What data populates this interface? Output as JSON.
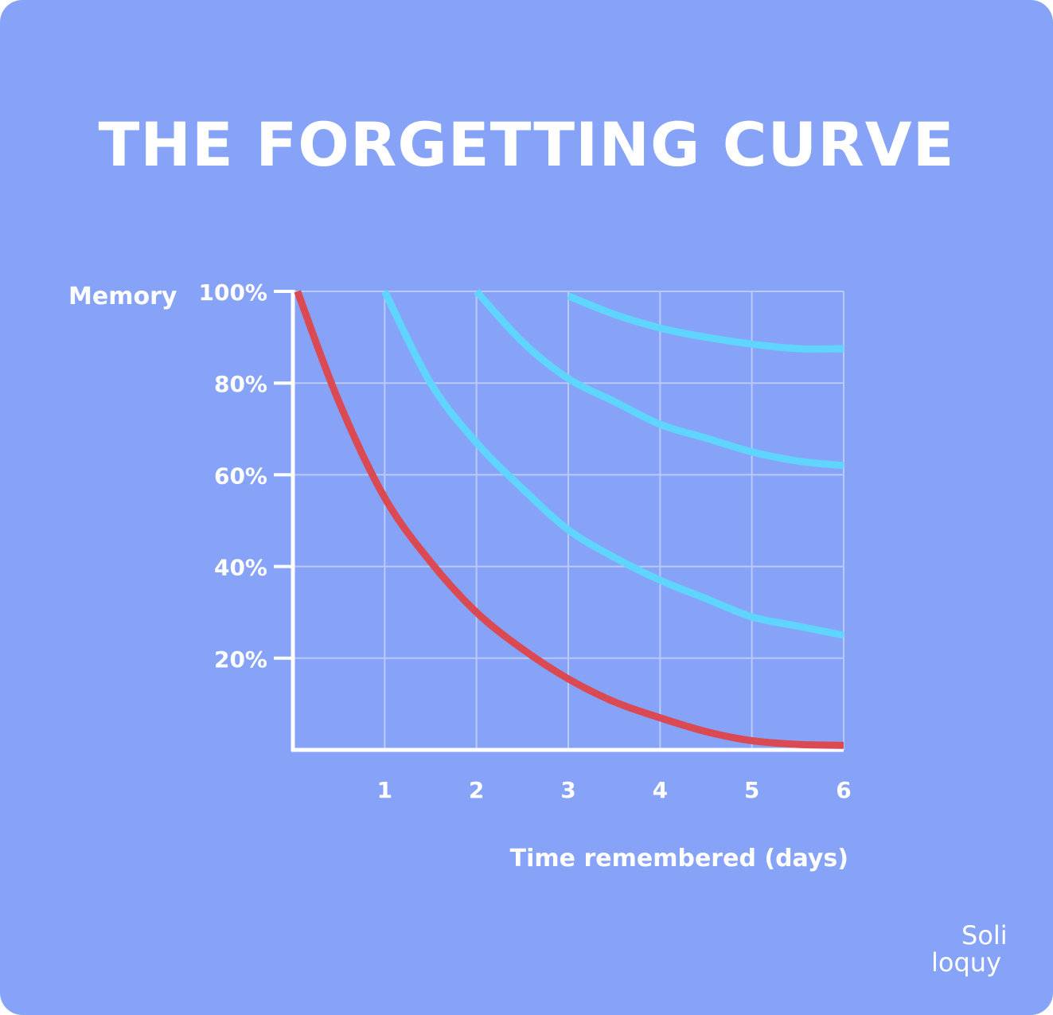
{
  "theme": {
    "background": "#87a3f8",
    "base_curve_color": "#db4a52",
    "review_curve_color": "#5fd4fc",
    "grid_color": "#b9c9f8",
    "axis_color": "#ffffff",
    "text_color": "#ffffff"
  },
  "logo": {
    "line1": "Soli",
    "line2": "loquy"
  },
  "chart_data": {
    "type": "line",
    "title": "THE FORGETTING CURVE",
    "ylabel": "Memory",
    "xlabel": "Time remembered (days)",
    "xlim": [
      0,
      6
    ],
    "ylim": [
      0,
      100
    ],
    "x_ticks": [
      1,
      2,
      3,
      4,
      5,
      6
    ],
    "y_ticks": [
      20,
      40,
      60,
      80,
      100
    ],
    "y_tick_labels": [
      "20%",
      "40%",
      "60%",
      "80%",
      "100%"
    ],
    "grid": true,
    "legend": "none",
    "series": [
      {
        "color": "#db4a52",
        "x": [
          0.05,
          0.5,
          1.0,
          1.5,
          2.0,
          2.5,
          3.0,
          3.5,
          4.0,
          4.5,
          5.0,
          5.5,
          6.0
        ],
        "y": [
          100,
          76,
          55,
          41,
          30,
          22,
          15.5,
          10.5,
          7,
          4,
          2,
          1.2,
          1
        ]
      },
      {
        "color": "#5fd4fc",
        "x": [
          1.0,
          1.5,
          2.0,
          2.5,
          3.0,
          3.5,
          4.0,
          4.5,
          5.0,
          5.5,
          6.0
        ],
        "y": [
          100,
          80,
          67,
          57,
          48,
          42,
          37,
          33,
          29,
          27,
          25
        ]
      },
      {
        "color": "#5fd4fc",
        "x": [
          2.0,
          2.5,
          3.0,
          3.5,
          4.0,
          4.5,
          5.0,
          5.5,
          6.0
        ],
        "y": [
          100,
          89,
          81,
          76,
          71,
          68,
          65,
          63,
          62
        ]
      },
      {
        "color": "#5fd4fc",
        "x": [
          3.0,
          3.5,
          4.0,
          4.5,
          5.0,
          5.5,
          6.0
        ],
        "y": [
          99,
          95,
          92,
          90,
          88.5,
          87.5,
          87.5
        ]
      }
    ]
  }
}
